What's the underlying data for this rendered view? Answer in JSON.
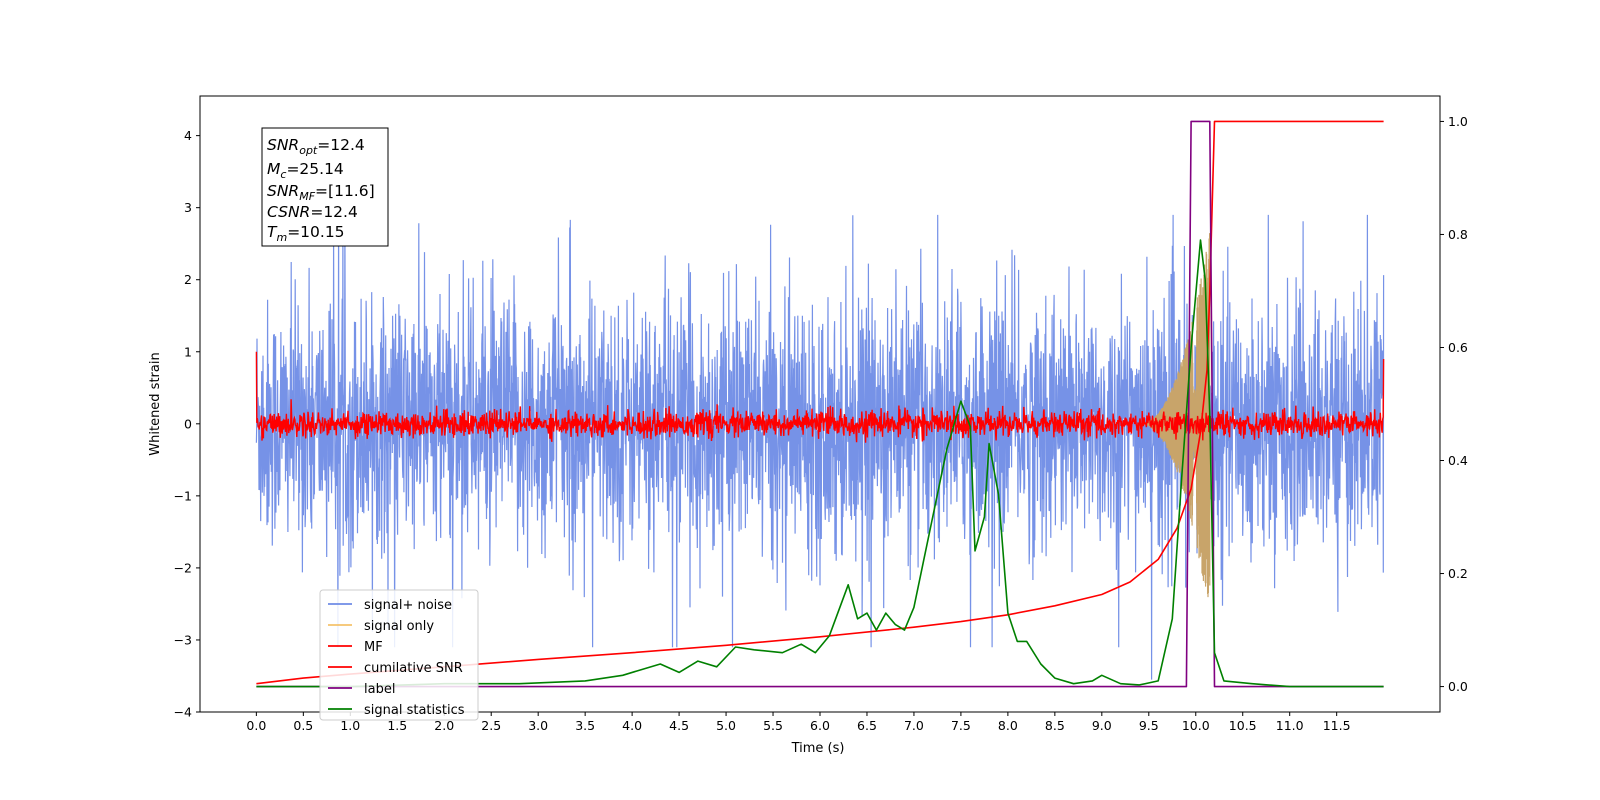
{
  "chart_data": {
    "type": "line",
    "xlabel": "Time (s)",
    "ylabel": "Whitened strain",
    "xlim": [
      -0.6,
      12.6
    ],
    "ylim": [
      -4.0,
      4.55
    ],
    "y2lim": [
      -0.045,
      1.045
    ],
    "x_ticks": [
      "0.0",
      "0.5",
      "1.0",
      "1.5",
      "2.0",
      "2.5",
      "3.0",
      "3.5",
      "4.0",
      "4.5",
      "5.0",
      "5.5",
      "6.0",
      "6.5",
      "7.0",
      "7.5",
      "8.0",
      "8.5",
      "9.0",
      "9.5",
      "10.0",
      "10.5",
      "11.0",
      "11.5"
    ],
    "y_ticks": [
      "-4",
      "-3",
      "-2",
      "-1",
      "0",
      "1",
      "2",
      "3",
      "4"
    ],
    "y2_ticks": [
      "0.0",
      "0.2",
      "0.4",
      "0.6",
      "0.8",
      "1.0"
    ],
    "info_box": {
      "snr_opt": {
        "base": "SNR",
        "sub": "opt",
        "value": "=12.4"
      },
      "mc": {
        "base": "M",
        "sub": "c",
        "value": "=25.14"
      },
      "snr_mf": {
        "base": "SNR",
        "sub": "MF",
        "value": "=[11.6]"
      },
      "csnr": {
        "base": "CSNR",
        "sub": "",
        "value": "=12.4"
      },
      "tm": {
        "base": "T",
        "sub": "m",
        "value": "=10.15"
      }
    },
    "legend": {
      "placement": "lower-left",
      "entries": [
        {
          "label": "signal+ noise",
          "color": "#6f8ce6"
        },
        {
          "label": "signal only",
          "color": "#f4c26b"
        },
        {
          "label": "MF",
          "color": "#ff0000"
        },
        {
          "label": "cumilative SNR",
          "color": "#ff0000"
        },
        {
          "label": "label",
          "color": "#800080"
        },
        {
          "label": "signal statistics",
          "color": "#008000"
        }
      ]
    },
    "series": [
      {
        "name": "signal+ noise",
        "axis": "left",
        "color": "#6f8ce6",
        "style": "noise",
        "x_range": [
          0.0,
          12.0
        ],
        "envelope_upper": 2.9,
        "envelope_lower": -3.1
      },
      {
        "name": "signal only",
        "axis": "left",
        "color": "#c8a46a",
        "style": "chirp",
        "x_range": [
          9.4,
          10.15
        ],
        "peak_amplitude": 2.7
      },
      {
        "name": "MF",
        "axis": "left",
        "color": "#ff0000",
        "style": "noise-band",
        "x_range": [
          0.0,
          12.0
        ],
        "amplitude": 0.2
      },
      {
        "name": "cumilative SNR",
        "axis": "right",
        "color": "#ff0000",
        "x": [
          0.0,
          0.5,
          1.0,
          2.0,
          3.0,
          4.0,
          5.0,
          6.0,
          7.0,
          7.5,
          8.0,
          8.5,
          9.0,
          9.3,
          9.6,
          9.8,
          9.95,
          10.05,
          10.12,
          10.15,
          10.2,
          12.0
        ],
        "y": [
          0.005,
          0.015,
          0.022,
          0.035,
          0.048,
          0.06,
          0.073,
          0.088,
          0.105,
          0.115,
          0.127,
          0.143,
          0.163,
          0.185,
          0.225,
          0.28,
          0.35,
          0.45,
          0.56,
          0.7,
          1.0,
          1.0
        ]
      },
      {
        "name": "label",
        "axis": "right",
        "color": "#800080",
        "x": [
          0.0,
          9.9,
          9.95,
          10.15,
          10.2,
          12.0
        ],
        "y": [
          0.0,
          0.0,
          1.0,
          1.0,
          0.0,
          0.0
        ]
      },
      {
        "name": "signal statistics",
        "axis": "right",
        "color": "#008000",
        "x": [
          0.0,
          1.0,
          2.0,
          2.8,
          3.5,
          3.9,
          4.1,
          4.3,
          4.5,
          4.7,
          4.9,
          5.1,
          5.3,
          5.6,
          5.8,
          5.95,
          6.1,
          6.3,
          6.4,
          6.5,
          6.6,
          6.7,
          6.8,
          6.9,
          7.0,
          7.1,
          7.2,
          7.35,
          7.5,
          7.6,
          7.65,
          7.75,
          7.8,
          7.9,
          8.0,
          8.1,
          8.2,
          8.35,
          8.5,
          8.7,
          8.9,
          9.0,
          9.2,
          9.4,
          9.6,
          9.75,
          9.85,
          9.95,
          10.05,
          10.1,
          10.15,
          10.2,
          10.3,
          10.6,
          11.0,
          12.0
        ],
        "y": [
          0.0,
          0.0,
          0.005,
          0.005,
          0.01,
          0.02,
          0.03,
          0.04,
          0.025,
          0.045,
          0.035,
          0.07,
          0.065,
          0.06,
          0.075,
          0.06,
          0.09,
          0.18,
          0.12,
          0.13,
          0.1,
          0.13,
          0.11,
          0.1,
          0.14,
          0.22,
          0.3,
          0.42,
          0.505,
          0.46,
          0.24,
          0.3,
          0.43,
          0.34,
          0.13,
          0.08,
          0.08,
          0.04,
          0.015,
          0.005,
          0.01,
          0.02,
          0.005,
          0.003,
          0.01,
          0.12,
          0.37,
          0.6,
          0.79,
          0.72,
          0.48,
          0.06,
          0.01,
          0.005,
          0.0,
          0.0
        ]
      }
    ]
  }
}
